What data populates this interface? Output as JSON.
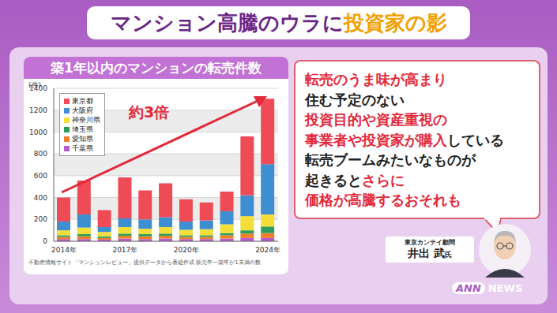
{
  "header": {
    "parts": [
      {
        "text": "マンション高騰のウラに",
        "color": "#6a2585"
      },
      {
        "text": "投資家の影",
        "color": "#f2a000"
      }
    ]
  },
  "chart_data": {
    "type": "bar",
    "title": "築1年以内のマンションの転売件数",
    "y_label": "(件)",
    "annotation": "約3倍",
    "note": "不動産情報サイト「マンションレビュー」提供データから番組作成 販売年一築年が1未満の数",
    "categories": [
      "2014年",
      null,
      null,
      "2017年",
      null,
      null,
      "2020年",
      null,
      null,
      null,
      "2024年"
    ],
    "series": [
      {
        "name": "東京都",
        "color": "#ee4b57",
        "values": [
          220,
          310,
          155,
          375,
          265,
          310,
          205,
          165,
          180,
          540,
          600
        ]
      },
      {
        "name": "大阪府",
        "color": "#3d8fd1",
        "values": [
          80,
          120,
          45,
          80,
          85,
          90,
          75,
          80,
          120,
          190,
          460
        ]
      },
      {
        "name": "神奈川県",
        "color": "#f4df3a",
        "values": [
          45,
          60,
          40,
          60,
          50,
          60,
          50,
          55,
          80,
          130,
          110
        ]
      },
      {
        "name": "埼玉県",
        "color": "#2f9d5b",
        "values": [
          15,
          20,
          15,
          20,
          20,
          20,
          15,
          15,
          20,
          30,
          60
        ]
      },
      {
        "name": "愛知県",
        "color": "#f07f2a",
        "values": [
          20,
          25,
          15,
          25,
          25,
          25,
          20,
          20,
          30,
          40,
          45
        ]
      },
      {
        "name": "千葉県",
        "color": "#b65bc9",
        "values": [
          20,
          20,
          15,
          25,
          20,
          25,
          20,
          20,
          25,
          30,
          30
        ]
      }
    ],
    "ylim": [
      0,
      1400
    ],
    "yticks": [
      0,
      200,
      400,
      600,
      800,
      1000,
      1200,
      1400
    ],
    "grid": true,
    "stacked": true,
    "legend": "upper left"
  },
  "quote": {
    "lines": [
      [
        {
          "text": "転売のうま味が高まり",
          "color": "#e3283a"
        }
      ],
      [
        {
          "text": "住む予定のない",
          "color": "#222222"
        }
      ],
      [
        {
          "text": "投資目的や資産重視の",
          "color": "#e3283a"
        }
      ],
      [
        {
          "text": "事業者や投資家が購入",
          "color": "#e3283a"
        },
        {
          "text": "している",
          "color": "#222222"
        }
      ],
      [
        {
          "text": "転売ブームみたいなものが",
          "color": "#222222"
        }
      ],
      [
        {
          "text": "起きると",
          "color": "#222222"
        },
        {
          "text": "さらに",
          "color": "#e3283a"
        }
      ],
      [
        {
          "text": "価格が高騰するおそれも",
          "color": "#e3283a"
        }
      ]
    ]
  },
  "speaker": {
    "title": "東京カンテイ顧問",
    "name": "井出 武",
    "honorific": "氏"
  },
  "logo": [
    "ANN",
    "NEWS"
  ]
}
